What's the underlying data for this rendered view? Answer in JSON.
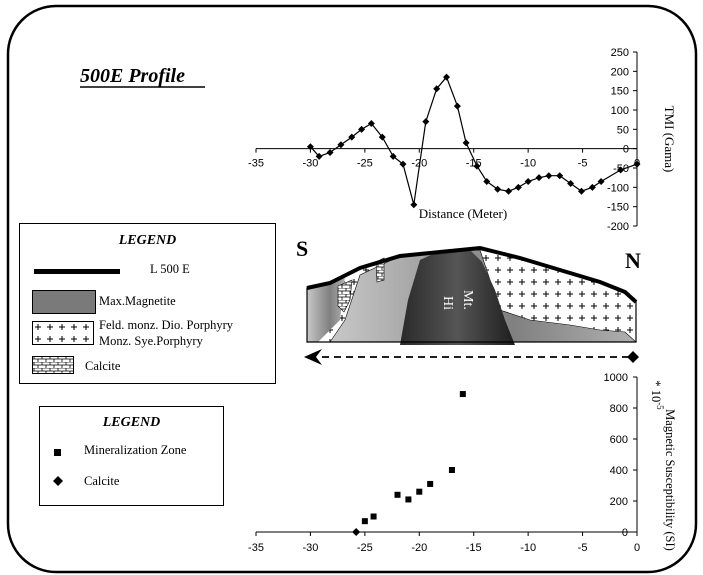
{
  "title": "500E Profile",
  "profile_section": {
    "left_label": "S",
    "right_label": "N",
    "body_label_1": "Hi",
    "body_label_2": "Mt."
  },
  "legend_main": {
    "title": "LEGEND",
    "items": [
      {
        "label": "L 500 E",
        "symbol": "thick-line"
      },
      {
        "label": "Max.Magnetite",
        "symbol": "gray-fill"
      },
      {
        "label": "Feld. monz. Dio. Porphyry",
        "symbol": "plus-pattern"
      },
      {
        "label": "Monz. Sye.Porphyry",
        "symbol": "plus-pattern"
      },
      {
        "label": "Calcite",
        "symbol": "brick-pattern"
      }
    ]
  },
  "legend_scatter": {
    "title": "LEGEND",
    "items": [
      {
        "label": "Mineralization Zone",
        "symbol": "square"
      },
      {
        "label": "Calcite",
        "symbol": "diamond"
      }
    ]
  },
  "chart_data": [
    {
      "type": "line",
      "xlabel": "Distance (Meter)",
      "ylabel": "TMI (Gama)",
      "xlim": [
        -35,
        0
      ],
      "ylim": [
        -200,
        250
      ],
      "x_ticks": [
        "-35",
        "-30",
        "-25",
        "-20",
        "-15",
        "-10",
        "-5",
        "0"
      ],
      "y_ticks": [
        "250",
        "200",
        "150",
        "100",
        "50",
        "0",
        "-50",
        "-100",
        "-150",
        "-200"
      ],
      "series": [
        {
          "marker": "diamond",
          "x": [
            -30,
            -29.2,
            -28.2,
            -27.2,
            -26.2,
            -25.3,
            -24.4,
            -23.4,
            -22.4,
            -21.5,
            -20.5,
            -19.4,
            -18.4,
            -17.5,
            -16.5,
            -15.7,
            -14.7,
            -13.8,
            -12.8,
            -11.8,
            -10.9,
            -10,
            -9,
            -8.1,
            -7.1,
            -6.1,
            -5.1,
            -4.1,
            -3.3,
            -1.5,
            0
          ],
          "y": [
            5,
            -20,
            -10,
            10,
            30,
            50,
            65,
            30,
            -20,
            -40,
            -145,
            70,
            155,
            185,
            110,
            15,
            -45,
            -85,
            -105,
            -110,
            -100,
            -85,
            -75,
            -70,
            -70,
            -90,
            -110,
            -100,
            -85,
            -55,
            -40
          ]
        }
      ]
    },
    {
      "type": "scatter",
      "ylabel": "Magnetic Susceptibility (SI) * 10^-5",
      "ylabel_1": "Magnetic Susceptibility (SI)",
      "ylabel_2": "* 10",
      "ylabel_sup": "-5",
      "xlim": [
        -35,
        0
      ],
      "ylim": [
        0,
        1000
      ],
      "x_ticks": [
        "-35",
        "-30",
        "-25",
        "-20",
        "-15",
        "-10",
        "-5",
        "0"
      ],
      "y_ticks": [
        "1000",
        "800",
        "600",
        "400",
        "200",
        "0"
      ],
      "series": [
        {
          "name": "Mineralization Zone",
          "marker": "square",
          "x": [
            -16,
            -17,
            -19,
            -20,
            -21,
            -22,
            -24.2,
            -25
          ],
          "y": [
            890,
            400,
            310,
            260,
            210,
            240,
            100,
            70
          ]
        },
        {
          "name": "Calcite",
          "marker": "diamond",
          "x": [
            -25.8
          ],
          "y": [
            0
          ]
        }
      ]
    }
  ]
}
